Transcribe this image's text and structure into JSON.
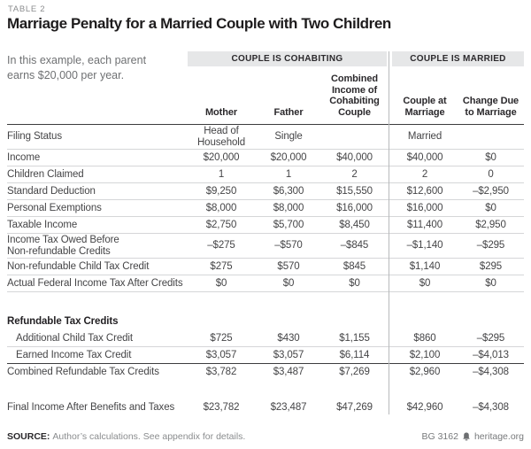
{
  "page": {
    "table_label": "TABLE 2",
    "title": "Marriage Penalty for a Married Couple with Two Children",
    "intro": "In this example, each parent earns $20,000 per year."
  },
  "table": {
    "group_headers": [
      {
        "id": "cohabiting",
        "label": "COUPLE IS COHABITING"
      },
      {
        "id": "married",
        "label": "COUPLE IS MARRIED"
      }
    ],
    "columns": [
      {
        "id": "mother",
        "label": "Mother"
      },
      {
        "id": "father",
        "label": "Father"
      },
      {
        "id": "combined",
        "label": "Combined Income of Cohabiting Couple"
      },
      {
        "id": "couple-at-marriage",
        "label": "Couple at Marriage"
      },
      {
        "id": "change-due-to-marriage",
        "label": "Change Due to Marriage"
      }
    ],
    "rows": [
      {
        "label": "Filing Status",
        "values": [
          "Head of\nHousehold",
          "Single",
          "",
          "Married",
          ""
        ],
        "rule": "light",
        "tall": true
      },
      {
        "label": "Income",
        "values": [
          "$20,000",
          "$20,000",
          "$40,000",
          "$40,000",
          "$0"
        ],
        "rule": "light"
      },
      {
        "label": "Children Claimed",
        "values": [
          "1",
          "1",
          "2",
          "2",
          "0"
        ],
        "rule": "light"
      },
      {
        "label": "Standard Deduction",
        "values": [
          "$9,250",
          "$6,300",
          "$15,550",
          "$12,600",
          "–$2,950"
        ],
        "rule": "light"
      },
      {
        "label": "Personal Exemptions",
        "values": [
          "$8,000",
          "$8,000",
          "$16,000",
          "$16,000",
          "$0"
        ],
        "rule": "light"
      },
      {
        "label": "Taxable Income",
        "values": [
          "$2,750",
          "$5,700",
          "$8,450",
          "$11,400",
          "$2,950"
        ],
        "rule": "light"
      },
      {
        "label": "Income Tax Owed Before\nNon-refundable Credits",
        "values": [
          "–$275",
          "–$570",
          "–$845",
          "–$1,140",
          "–$295"
        ],
        "rule": "light",
        "tall": true
      },
      {
        "label": "Non-refundable Child Tax Credit",
        "values": [
          "$275",
          "$570",
          "$845",
          "$1,140",
          "$295"
        ],
        "rule": "light"
      },
      {
        "label": "Actual Federal Income Tax After Credits",
        "values": [
          "$0",
          "$0",
          "$0",
          "$0",
          "$0"
        ],
        "rule": "light"
      },
      {
        "type": "spacer"
      },
      {
        "type": "section",
        "label": "Refundable Tax Credits"
      },
      {
        "label": "Additional Child Tax Credit",
        "values": [
          "$725",
          "$430",
          "$1,155",
          "$860",
          "–$295"
        ],
        "rule": "light",
        "indent": true
      },
      {
        "label": "Earned Income Tax Credit",
        "values": [
          "$3,057",
          "$3,057",
          "$6,114",
          "$2,100",
          "–$4,013"
        ],
        "rule": "dark",
        "indent": true
      },
      {
        "label": "Combined Refundable Tax Credits",
        "values": [
          "$3,782",
          "$3,487",
          "$7,269",
          "$2,960",
          "–$4,308"
        ]
      },
      {
        "type": "spacer"
      },
      {
        "label": "Final Income After Benefits and Taxes",
        "values": [
          "$23,782",
          "$23,487",
          "$47,269",
          "$42,960",
          "–$4,308"
        ]
      }
    ]
  },
  "footer": {
    "source_label": "SOURCE:",
    "source_text": "Author’s calculations. See appendix for details.",
    "doc_id": "BG 3162",
    "site": "heritage.org",
    "logo_icon": "liberty-bell-icon"
  },
  "colors": {
    "title_text": "#1e1c1d",
    "muted_text": "#8a8c8e",
    "body_text": "#454547",
    "band_background": "#e6e7e8",
    "rule_light": "#d5d6d8",
    "rule_dark": "#3c3c3e",
    "section_divider": "#b7b9bb"
  }
}
